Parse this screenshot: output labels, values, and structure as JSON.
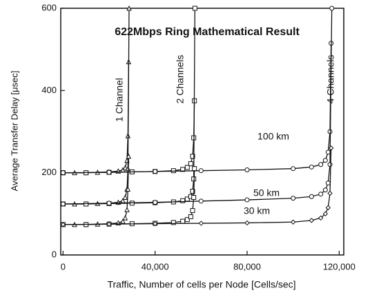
{
  "chart_data": {
    "type": "line",
    "title": "622Mbps Ring Mathematical Result",
    "x_label": "Traffic, Number of cells per Node [Cells/sec]",
    "y_label": "Average Transfer Delay [μsec]",
    "xlim": [
      -1000,
      122000
    ],
    "ylim": [
      0,
      600
    ],
    "xticks": [
      0,
      {
        "value": 40000,
        "label": "40,000"
      },
      {
        "value": 80000,
        "label": "80,000"
      },
      {
        "value": 120000,
        "label": "120,000"
      }
    ],
    "yticks": [
      0,
      200,
      400,
      600
    ],
    "grid": false,
    "color": "#111111",
    "annotations": [
      "1 Channel",
      "2 Channels",
      "4 Channels",
      "100 km",
      "50 km",
      "30 km"
    ],
    "series": [
      {
        "marker": "triangle",
        "x": [
          0,
          5000,
          10000,
          15000,
          20000,
          24000,
          26000,
          27000,
          27800,
          28200,
          28500
        ],
        "values": [
          200,
          200,
          200,
          201,
          202,
          204,
          207,
          212,
          230,
          290,
          470
        ]
      },
      {
        "marker": "triangle",
        "x": [
          0,
          5000,
          10000,
          15000,
          20000,
          24000,
          26000,
          27000,
          27800,
          28200,
          28700
        ],
        "values": [
          124,
          124,
          124,
          125,
          126,
          128,
          132,
          140,
          160,
          210,
          600
        ]
      },
      {
        "marker": "triangle",
        "x": [
          0,
          5000,
          10000,
          15000,
          20000,
          24000,
          26000,
          27000,
          27800,
          28200,
          28500
        ],
        "values": [
          74,
          74,
          74,
          75,
          76,
          78,
          82,
          90,
          110,
          160,
          240
        ]
      },
      {
        "marker": "square",
        "x": [
          0,
          10000,
          20000,
          30000,
          40000,
          48000,
          52000,
          54000,
          55500,
          56300,
          56800,
          57100
        ],
        "values": [
          200,
          200,
          201,
          202,
          203,
          205,
          208,
          213,
          222,
          240,
          285,
          375
        ]
      },
      {
        "marker": "square",
        "x": [
          0,
          10000,
          20000,
          30000,
          40000,
          48000,
          52000,
          54000,
          55500,
          56300,
          56800,
          57300
        ],
        "values": [
          124,
          124,
          125,
          126,
          127,
          129,
          132,
          136,
          142,
          155,
          185,
          600
        ]
      },
      {
        "marker": "square",
        "x": [
          0,
          10000,
          20000,
          30000,
          40000,
          48000,
          52000,
          54000,
          55500,
          56300,
          56800,
          57100
        ],
        "values": [
          74,
          74,
          75,
          76,
          77,
          79,
          82,
          86,
          93,
          108,
          140,
          210
        ]
      },
      {
        "marker": "circle",
        "x": [
          0,
          20000,
          40000,
          60000,
          80000,
          100000,
          108000,
          112000,
          114000,
          115200,
          116000,
          116500
        ],
        "values": [
          200,
          201,
          203,
          205,
          207,
          210,
          214,
          220,
          230,
          250,
          300,
          515
        ]
      },
      {
        "marker": "circle",
        "x": [
          0,
          20000,
          40000,
          60000,
          80000,
          100000,
          108000,
          112000,
          114000,
          115200,
          116000,
          116800
        ],
        "values": [
          124,
          126,
          128,
          131,
          134,
          138,
          142,
          148,
          158,
          175,
          220,
          600
        ]
      },
      {
        "marker": "diamond",
        "x": [
          0,
          20000,
          40000,
          60000,
          80000,
          100000,
          108000,
          112000,
          114000,
          115200,
          116000,
          116500
        ],
        "values": [
          74,
          75,
          76,
          77,
          78,
          80,
          84,
          90,
          100,
          115,
          150,
          260
        ]
      }
    ]
  }
}
